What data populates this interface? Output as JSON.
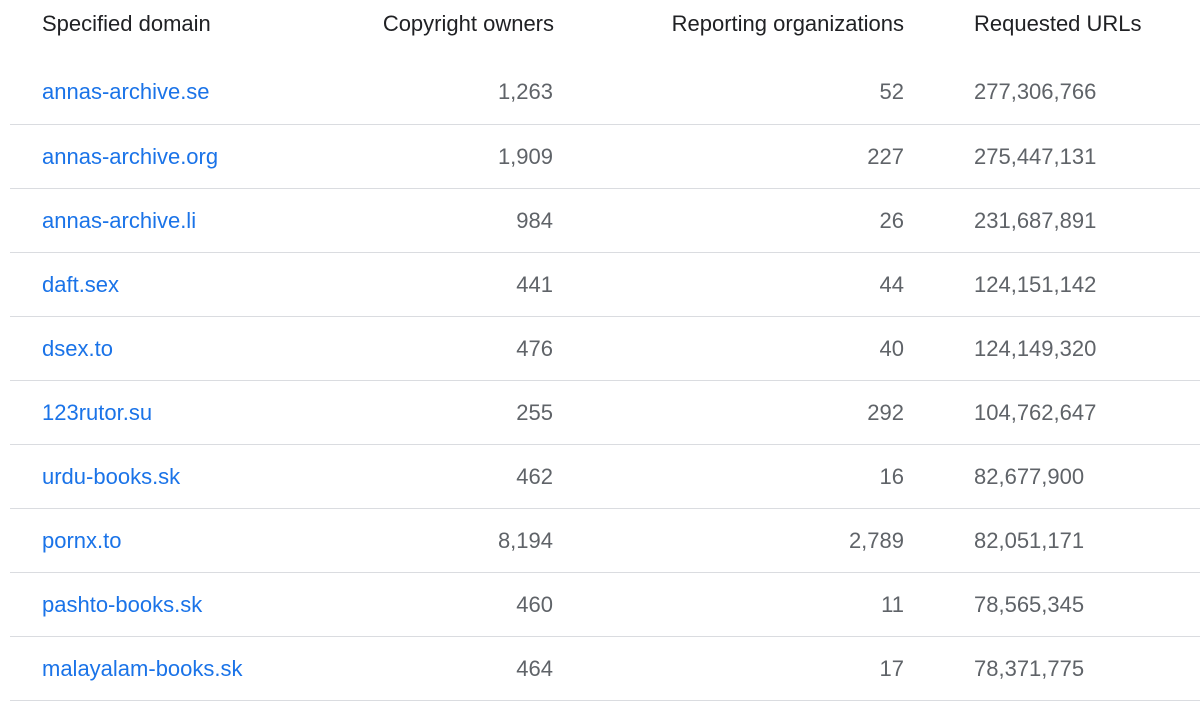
{
  "table": {
    "headers": {
      "domain": "Specified domain",
      "owners": "Copyright owners",
      "orgs": "Reporting organizations",
      "urls": "Requested URLs"
    },
    "rows": [
      {
        "domain": "annas-archive.se",
        "owners": "1,263",
        "orgs": "52",
        "urls": "277,306,766"
      },
      {
        "domain": "annas-archive.org",
        "owners": "1,909",
        "orgs": "227",
        "urls": "275,447,131"
      },
      {
        "domain": "annas-archive.li",
        "owners": "984",
        "orgs": "26",
        "urls": "231,687,891"
      },
      {
        "domain": "daft.sex",
        "owners": "441",
        "orgs": "44",
        "urls": "124,151,142"
      },
      {
        "domain": "dsex.to",
        "owners": "476",
        "orgs": "40",
        "urls": "124,149,320"
      },
      {
        "domain": "123rutor.su",
        "owners": "255",
        "orgs": "292",
        "urls": "104,762,647"
      },
      {
        "domain": "urdu-books.sk",
        "owners": "462",
        "orgs": "16",
        "urls": "82,677,900"
      },
      {
        "domain": "pornx.to",
        "owners": "8,194",
        "orgs": "2,789",
        "urls": "82,051,171"
      },
      {
        "domain": "pashto-books.sk",
        "owners": "460",
        "orgs": "11",
        "urls": "78,565,345"
      },
      {
        "domain": "malayalam-books.sk",
        "owners": "464",
        "orgs": "17",
        "urls": "78,371,775"
      }
    ],
    "colors": {
      "link": "#1a73e8",
      "value": "#5f6368",
      "header": "#202124",
      "divider": "#dadce0"
    }
  }
}
